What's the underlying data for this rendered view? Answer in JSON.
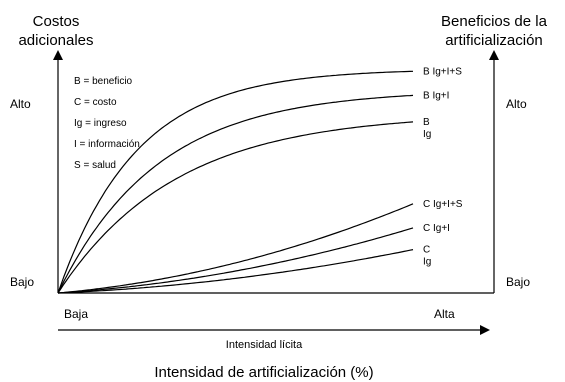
{
  "chart_data": {
    "type": "line",
    "title": "",
    "y_left_label": [
      "Costos",
      "adicionales"
    ],
    "y_right_label": [
      "Beneficios de la",
      "artificialización"
    ],
    "y_left_ticks": {
      "high": "Alto",
      "low": "Bajo"
    },
    "y_right_ticks": {
      "high": "Alto",
      "low": "Bajo"
    },
    "x_ticks": {
      "low": "Baja",
      "high": "Alta"
    },
    "x_label_inner": "Intensidad lícita",
    "x_label_outer": "Intensidad de artificialización (%)",
    "legend": [
      "B = beneficio",
      "C = costo",
      "Ig = ingreso",
      "I = información",
      "S = salud"
    ],
    "benefit_curves": [
      {
        "label": [
          "B Ig+I+S"
        ],
        "end_level": 0.92,
        "shape": 0.22
      },
      {
        "label": [
          "B Ig+I"
        ],
        "end_level": 0.82,
        "shape": 0.28
      },
      {
        "label": [
          "B",
          "Ig"
        ],
        "end_level": 0.71,
        "shape": 0.33
      }
    ],
    "cost_curves": [
      {
        "label": [
          "C Ig+I+S"
        ],
        "end_level": 0.37,
        "shape": 1.0
      },
      {
        "label": [
          "C Ig+I"
        ],
        "end_level": 0.27,
        "shape": 1.0
      },
      {
        "label": [
          "C",
          "Ig"
        ],
        "end_level": 0.18,
        "shape": 1.0
      }
    ]
  }
}
